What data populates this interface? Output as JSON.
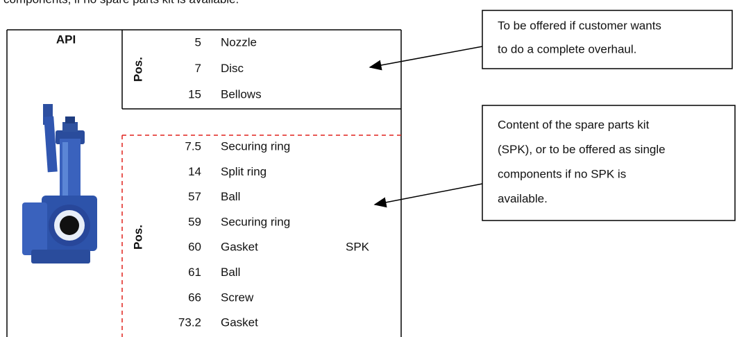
{
  "intro_text": "components, if no spare parts kit is available.",
  "table": {
    "title": "API",
    "groups": [
      {
        "label": "Pos.",
        "rows": [
          {
            "pos": "5",
            "name": "Nozzle"
          },
          {
            "pos": "7",
            "name": "Disc"
          },
          {
            "pos": "15",
            "name": "Bellows"
          }
        ]
      },
      {
        "label": "Pos.",
        "tag": "SPK",
        "rows": [
          {
            "pos": "7.5",
            "name": "Securing ring"
          },
          {
            "pos": "14",
            "name": "Split ring"
          },
          {
            "pos": "57",
            "name": "Ball"
          },
          {
            "pos": "59",
            "name": "Securing ring"
          },
          {
            "pos": "60",
            "name": "Gasket"
          },
          {
            "pos": "61",
            "name": "Ball"
          },
          {
            "pos": "66",
            "name": "Screw"
          },
          {
            "pos": "73.2",
            "name": "Gasket"
          }
        ]
      }
    ]
  },
  "callouts": [
    {
      "lines": [
        "To be offered if customer wants",
        "to do a complete overhaul."
      ]
    },
    {
      "lines": [
        "Content of the spare parts kit",
        "(SPK), or to be offered as single",
        "components if no SPK is",
        "available."
      ]
    }
  ]
}
